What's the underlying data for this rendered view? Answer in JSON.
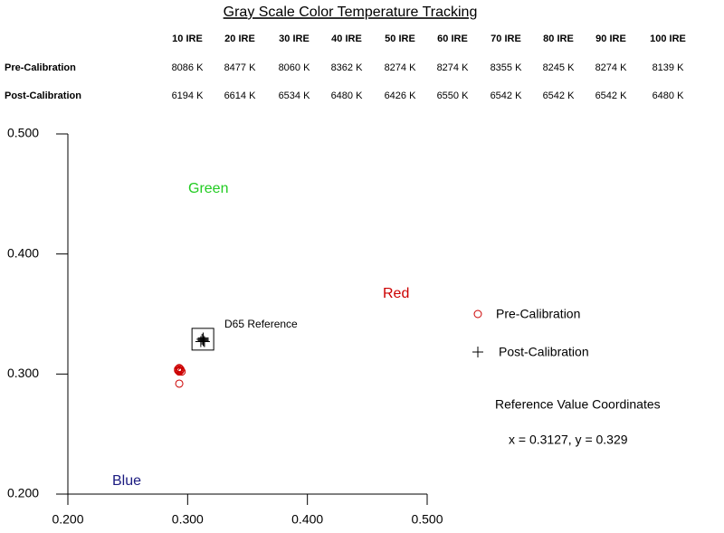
{
  "title": "Gray Scale Color Temperature Tracking",
  "table": {
    "header": [
      "10 IRE",
      "20 IRE",
      "30 IRE",
      "40 IRE",
      "50 IRE",
      "60 IRE",
      "70 IRE",
      "80 IRE",
      "90 IRE",
      "100 IRE"
    ],
    "rows": [
      {
        "label": "Pre-Calibration",
        "cells": [
          "8086 K",
          "8477 K",
          "8060 K",
          "8362 K",
          "8274 K",
          "8274 K",
          "8355 K",
          "8245 K",
          "8274 K",
          "8139 K"
        ]
      },
      {
        "label": "Post-Calibration",
        "cells": [
          "6194 K",
          "6614 K",
          "6534 K",
          "6480 K",
          "6426 K",
          "6550 K",
          "6542 K",
          "6542 K",
          "6542 K",
          "6480 K"
        ]
      }
    ]
  },
  "chart_data": {
    "type": "scatter",
    "xlim": [
      0.2,
      0.5
    ],
    "ylim": [
      0.2,
      0.5
    ],
    "xticks": [
      {
        "value": 0.2,
        "label": "0.200"
      },
      {
        "value": 0.3,
        "label": "0.300"
      },
      {
        "value": 0.4,
        "label": "0.400"
      },
      {
        "value": 0.5,
        "label": "0.500"
      }
    ],
    "yticks": [
      {
        "value": 0.2,
        "label": "0.200"
      },
      {
        "value": 0.3,
        "label": "0.300"
      },
      {
        "value": 0.4,
        "label": "0.400"
      },
      {
        "value": 0.5,
        "label": "0.500"
      }
    ],
    "series": [
      {
        "name": "Pre-Calibration",
        "color": "#cc0000",
        "marker": "circle",
        "x": [
          0.293,
          0.294,
          0.292,
          0.293,
          0.293,
          0.293,
          0.292,
          0.294,
          0.293,
          0.295
        ],
        "y": [
          0.292,
          0.304,
          0.303,
          0.305,
          0.302,
          0.303,
          0.304,
          0.303,
          0.305,
          0.302
        ]
      },
      {
        "name": "Post-Calibration",
        "color": "#000000",
        "marker": "plus",
        "x": [
          0.311,
          0.313,
          0.312,
          0.313,
          0.314,
          0.313,
          0.313,
          0.313,
          0.313,
          0.314
        ],
        "y": [
          0.327,
          0.33,
          0.329,
          0.328,
          0.327,
          0.329,
          0.328,
          0.328,
          0.328,
          0.327
        ]
      }
    ],
    "reference": {
      "name": "D65 Reference",
      "x": 0.3127,
      "y": 0.329,
      "heading": "Reference Value Coordinates",
      "label": "x = 0.3127, y = 0.329"
    },
    "annotations": [
      "Green",
      "Red",
      "Blue"
    ]
  }
}
